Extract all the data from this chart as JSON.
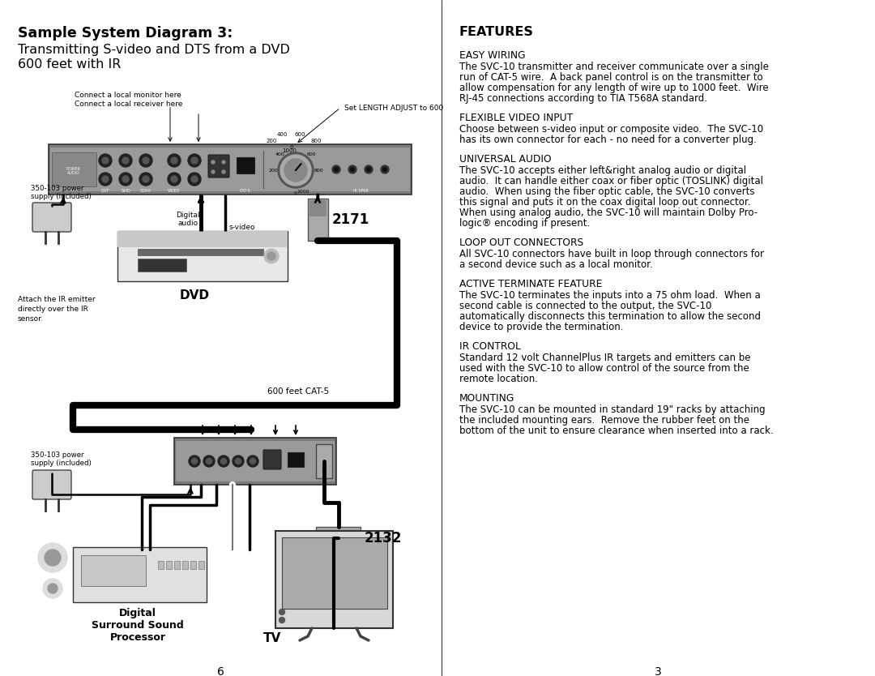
{
  "background_color": "#ffffff",
  "page_width": 10.8,
  "page_height": 8.34,
  "left_title_bold": "Sample System Diagram 3:",
  "left_title_line2": "Transmitting S-video and DTS from a DVD",
  "left_title_line3": "600 feet with IR",
  "right_title": "FEATURES",
  "features": [
    {
      "heading": "EASY WIRING",
      "body": "The SVC-10 transmitter and receiver communicate over a single\nrun of CAT-5 wire.  A back panel control is on the transmitter to\nallow compensation for any length of wire up to 1000 feet.  Wire\nRJ-45 connections according to TIA T568A standard."
    },
    {
      "heading": "FLEXIBLE VIDEO INPUT",
      "body": "Choose between s-video input or composite video.  The SVC-10\nhas its own connector for each - no need for a converter plug."
    },
    {
      "heading": "UNIVERSAL AUDIO",
      "body": "The SVC-10 accepts either left&right analog audio or digital\naudio.  It can handle either coax or fiber optic (TOSLINK) digital\naudio.  When using the fiber optic cable, the SVC-10 converts\nthis signal and puts it on the coax digital loop out connector.\nWhen using analog audio, the SVC-10 will maintain Dolby Pro-\nlogic® encoding if present."
    },
    {
      "heading": "LOOP OUT CONNECTORS",
      "body": "All SVC-10 connectors have built in loop through connectors for\na second device such as a local monitor."
    },
    {
      "heading": "ACTIVE TERMINATE FEATURE",
      "body": "The SVC-10 terminates the inputs into a 75 ohm load.  When a\nsecond cable is connected to the output, the SVC-10\nautomatically disconnects this termination to allow the second\ndevice to provide the termination."
    },
    {
      "heading": "IR CONTROL",
      "body": "Standard 12 volt ChannelPlus IR targets and emitters can be\nused with the SVC-10 to allow control of the source from the\nremote location."
    },
    {
      "heading": "MOUNTING",
      "body": "The SVC-10 can be mounted in standard 19\" racks by attaching\nthe included mounting ears.  Remove the rubber feet on the\nbottom of the unit to ensure clearance when inserted into a rack."
    }
  ],
  "left_page_num": "6",
  "right_page_num": "3"
}
